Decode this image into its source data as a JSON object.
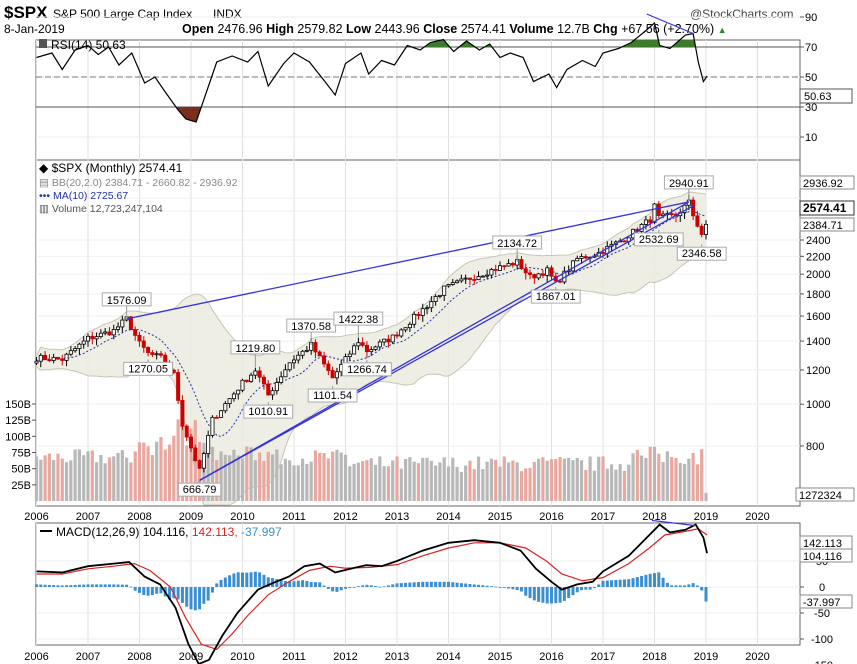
{
  "header": {
    "symbol": "$SPX",
    "name": "S&P 500 Large Cap Index",
    "exchange": "INDX",
    "source": "@StockCharts.com",
    "date": "8-Jan-2019",
    "open_label": "Open",
    "open": "2476.96",
    "high_label": "High",
    "high": "2579.82",
    "low_label": "Low",
    "low": "2443.96",
    "close_label": "Close",
    "close": "2574.41",
    "volume_label": "Volume",
    "volume": "12.7B",
    "chg_label": "Chg",
    "chg": "+67.56 (+2.70%)",
    "chg_arrow": "▲"
  },
  "colors": {
    "up": "#000000",
    "down": "#cc0000",
    "trendline": "#3333dd",
    "ma": "#2233aa",
    "bb_fill": "#ebeadf",
    "bb_line": "#c7c6b5",
    "macd": "#000000",
    "signal": "#dd2222",
    "hist": "#3b8fd0",
    "rsi_fill_hi": "#3d7a2a",
    "rsi_fill_lo": "#7a2e1e"
  },
  "rsi": {
    "label": "RSI(14)",
    "value": "50.63",
    "ticks": [
      "90",
      "70",
      "50",
      "30",
      "10"
    ],
    "value_tag": "50.63"
  },
  "price": {
    "legend_title": "$SPX (Monthly)",
    "legend_value": "2574.41",
    "bb_label": "BB(20,2.0)",
    "bb_values": "2384.71 - 2660.82 - 2936.92",
    "ma_label": "MA(10)",
    "ma_value": "2725.67",
    "vol_label": "Volume",
    "vol_value": "12,723,247,104",
    "ticks": [
      "2400",
      "2200",
      "2000",
      "1800",
      "1600",
      "1400",
      "1200",
      "1000",
      "800"
    ],
    "vol_ticks": [
      "150B",
      "125B",
      "100B",
      "75B",
      "50B",
      "25B"
    ],
    "tags": {
      "bb_upper": "2936.92",
      "close": "2574.41",
      "bb_lower": "2384.71",
      "volume": "1272324"
    },
    "annotations": [
      "1576.09",
      "1270.05",
      "666.79",
      "1219.80",
      "1010.91",
      "1370.58",
      "1101.54",
      "1422.38",
      "1266.74",
      "2134.72",
      "1867.01",
      "2940.91",
      "2532.69",
      "2346.58"
    ]
  },
  "macd": {
    "label": "MACD(12,26,9)",
    "macd_value": "104.116",
    "signal_value": "142.113",
    "hist_value": "-37.997",
    "ticks": [
      "50",
      "0",
      "-50",
      "-100",
      "-150"
    ],
    "tags": {
      "signal": "142.113",
      "macd": "104.116",
      "hist": "-37.997"
    }
  },
  "x_axis": {
    "years": [
      "2006",
      "2007",
      "2008",
      "2009",
      "2010",
      "2011",
      "2012",
      "2013",
      "2014",
      "2015",
      "2016",
      "2017",
      "2018",
      "2019",
      "2020"
    ]
  },
  "chart_data": {
    "type": "line",
    "title": "$SPX S&P 500 Large Cap Index INDX",
    "x": [
      "2006-01",
      "2006-07",
      "2007-01",
      "2007-07",
      "2007-10",
      "2008-01",
      "2008-03",
      "2008-06",
      "2008-09",
      "2008-11",
      "2009-03",
      "2009-06",
      "2010-01",
      "2010-04",
      "2010-07",
      "2010-12",
      "2011-05",
      "2011-10",
      "2012-04",
      "2012-06",
      "2012-12",
      "2013-06",
      "2013-12",
      "2014-06",
      "2014-12",
      "2015-05",
      "2015-08",
      "2015-12",
      "2016-02",
      "2016-07",
      "2016-12",
      "2017-06",
      "2017-12",
      "2018-01",
      "2018-02",
      "2018-06",
      "2018-09",
      "2018-10",
      "2018-12",
      "2019-01"
    ],
    "series": [
      {
        "name": "$SPX (Monthly)",
        "values": [
          1280,
          1270,
          1420,
          1480,
          1576,
          1380,
          1310,
          1280,
          1170,
          900,
          700,
          920,
          1120,
          1200,
          1050,
          1250,
          1370,
          1150,
          1400,
          1330,
          1430,
          1620,
          1850,
          1960,
          2060,
          2134,
          1970,
          2040,
          1900,
          2170,
          2240,
          2420,
          2680,
          2870,
          2700,
          2740,
          2930,
          2740,
          2480,
          2574
        ]
      }
    ],
    "annotations": [
      {
        "x": "2007-10",
        "y": 1576.09
      },
      {
        "x": "2008-03",
        "y": 1270.05
      },
      {
        "x": "2009-03",
        "y": 666.79
      },
      {
        "x": "2010-04",
        "y": 1219.8
      },
      {
        "x": "2010-07",
        "y": 1010.91
      },
      {
        "x": "2011-05",
        "y": 1370.58
      },
      {
        "x": "2011-10",
        "y": 1101.54
      },
      {
        "x": "2012-04",
        "y": 1422.38
      },
      {
        "x": "2012-06",
        "y": 1266.74
      },
      {
        "x": "2015-05",
        "y": 2134.72
      },
      {
        "x": "2016-02",
        "y": 1867.01
      },
      {
        "x": "2018-09",
        "y": 2940.91
      },
      {
        "x": "2018-02",
        "y": 2532.69
      },
      {
        "x": "2018-12",
        "y": 2346.58
      }
    ],
    "ylim": [
      600,
      3000
    ],
    "log_scale": true,
    "grid": true,
    "legend": "top-left"
  }
}
